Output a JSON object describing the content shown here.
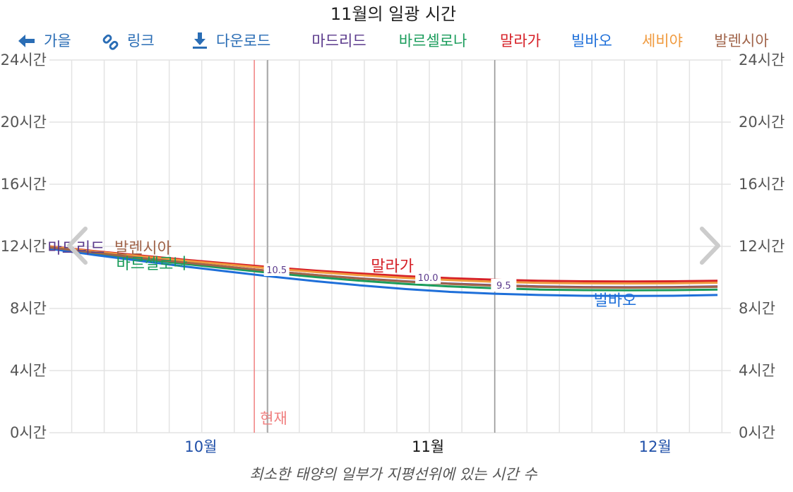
{
  "toolbar": {
    "back_label": "가을",
    "link_label": "링크",
    "download_label": "다운로드"
  },
  "now_label": "현재",
  "caption": "최소한 태양의 일부가 지평선위에 있는 시간 수",
  "colors": {
    "toolbar": "#2a6db5",
    "grid": "#e3e3e3",
    "now": "#f07f7f",
    "month_line": "#999999",
    "current_month": "#111111",
    "other_month": "#1f4fa8"
  },
  "chart_data": {
    "type": "line",
    "title": "11월의 일광 시간",
    "ylim": [
      0,
      24
    ],
    "y_ticks": [
      0,
      4,
      8,
      12,
      16,
      20,
      24
    ],
    "y_tick_labels": [
      "0시간",
      "4시간",
      "8시간",
      "12시간",
      "16시간",
      "20시간",
      "24시간"
    ],
    "x_range_days": [
      -49,
      104
    ],
    "x_labels": [
      {
        "label": "10월",
        "day": -15
      },
      {
        "label": "11월",
        "day": 36
      },
      {
        "label": "12월",
        "day": 87
      }
    ],
    "month_boundaries": [
      0,
      51
    ],
    "now_day": -3,
    "x_days": [
      -49,
      -39,
      -29,
      -19,
      -9,
      1,
      11,
      21,
      31,
      41,
      51,
      61,
      71,
      81,
      91,
      101
    ],
    "series": [
      {
        "name": "마드리드",
        "color": "#5b3a8c",
        "values": [
          11.95,
          11.6,
          11.28,
          10.98,
          10.68,
          10.4,
          10.15,
          9.93,
          9.75,
          9.6,
          9.5,
          9.42,
          9.38,
          9.37,
          9.38,
          9.42
        ]
      },
      {
        "name": "바르셀로나",
        "color": "#1a9c5b",
        "values": [
          11.9,
          11.55,
          11.2,
          10.88,
          10.58,
          10.28,
          10.02,
          9.78,
          9.58,
          9.42,
          9.3,
          9.22,
          9.18,
          9.17,
          9.18,
          9.22
        ]
      },
      {
        "name": "말라가",
        "color": "#d62027",
        "values": [
          12.0,
          11.7,
          11.42,
          11.15,
          10.9,
          10.65,
          10.43,
          10.25,
          10.08,
          9.95,
          9.85,
          9.78,
          9.75,
          9.74,
          9.75,
          9.78
        ]
      },
      {
        "name": "빌바오",
        "color": "#1e6fd9",
        "values": [
          11.85,
          11.45,
          11.08,
          10.72,
          10.38,
          10.05,
          9.75,
          9.48,
          9.25,
          9.07,
          8.95,
          8.87,
          8.82,
          8.81,
          8.82,
          8.87
        ]
      },
      {
        "name": "세비야",
        "color": "#f09a3e",
        "values": [
          11.98,
          11.67,
          11.37,
          11.09,
          10.83,
          10.57,
          10.34,
          10.14,
          9.97,
          9.83,
          9.72,
          9.65,
          9.62,
          9.61,
          9.62,
          9.66
        ]
      },
      {
        "name": "발렌시아",
        "color": "#a0644a",
        "values": [
          11.93,
          11.6,
          11.27,
          10.97,
          10.68,
          10.4,
          10.15,
          9.92,
          9.73,
          9.58,
          9.47,
          9.39,
          9.35,
          9.34,
          9.35,
          9.39
        ]
      }
    ],
    "data_labels": [
      {
        "text": "10.5",
        "day": 2,
        "value": 10.5
      },
      {
        "text": "10.0",
        "day": 36,
        "value": 10.0
      },
      {
        "text": "9.5",
        "day": 53,
        "value": 9.5
      }
    ],
    "series_labels": [
      {
        "name": "마드리드",
        "day": -43,
        "value": 11.9
      },
      {
        "name": "발렌시아",
        "day": -28,
        "value": 11.9
      },
      {
        "name": "바르셀로나",
        "day": -26,
        "value": 10.9
      },
      {
        "name": "말라가",
        "day": 28,
        "value": 10.75
      },
      {
        "name": "빌바오",
        "day": 78,
        "value": 8.55
      }
    ]
  }
}
